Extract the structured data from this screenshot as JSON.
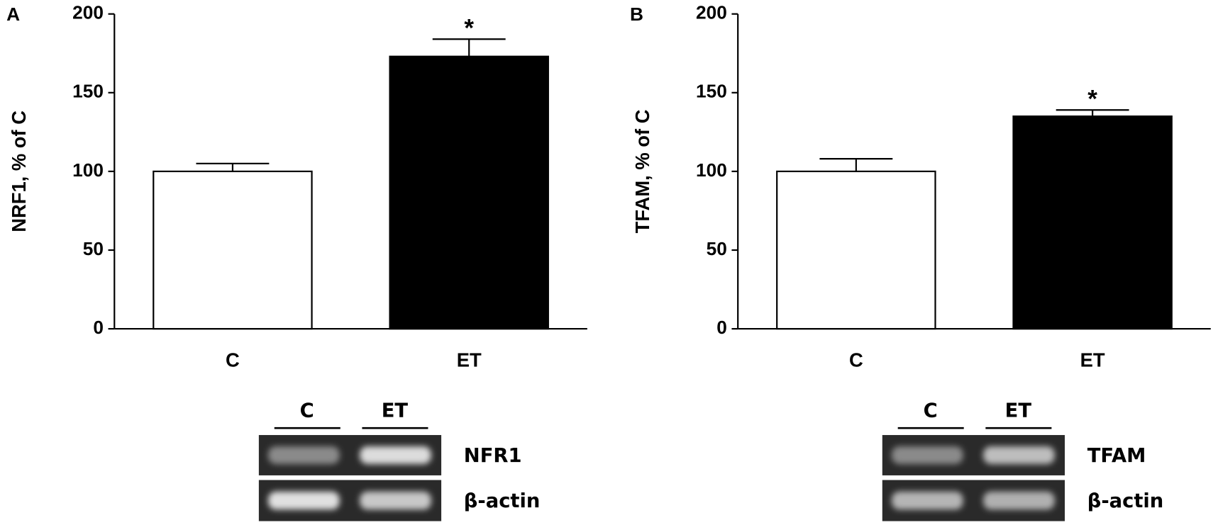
{
  "chart_data": [
    {
      "type": "bar",
      "panel": "A",
      "ylabel": "NRF1, % of C",
      "categories": [
        "C",
        "ET"
      ],
      "values": [
        100,
        173
      ],
      "errors": [
        5,
        11
      ],
      "colors": [
        "#ffffff",
        "#000000"
      ],
      "significance": [
        null,
        "*"
      ],
      "ylim": [
        0,
        200
      ],
      "yticks": [
        0,
        50,
        100,
        150,
        200
      ],
      "gel": {
        "lanes": [
          "C",
          "ET"
        ],
        "bands": [
          "NFR1",
          "β-actin"
        ]
      }
    },
    {
      "type": "bar",
      "panel": "B",
      "ylabel": "TFAM, % of C",
      "categories": [
        "C",
        "ET"
      ],
      "values": [
        100,
        135
      ],
      "errors": [
        8,
        4
      ],
      "colors": [
        "#ffffff",
        "#000000"
      ],
      "significance": [
        null,
        "*"
      ],
      "ylim": [
        0,
        200
      ],
      "yticks": [
        0,
        50,
        100,
        150,
        200
      ],
      "gel": {
        "lanes": [
          "C",
          "ET"
        ],
        "bands": [
          "TFAM",
          "β-actin"
        ]
      }
    }
  ]
}
